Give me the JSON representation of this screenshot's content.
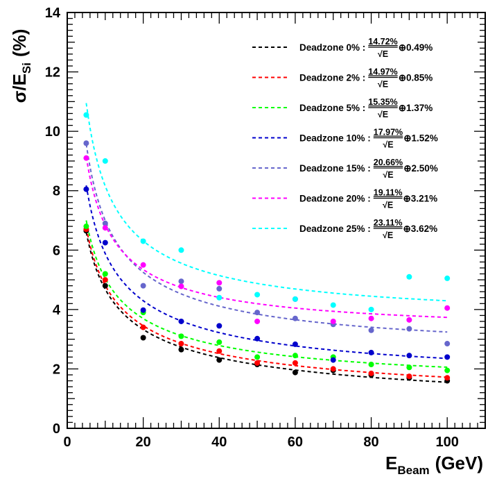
{
  "chart_data": {
    "type": "scatter",
    "title": "",
    "xlabel": {
      "main": "E",
      "sub": "Beam",
      "unit": "(GeV)"
    },
    "ylabel": {
      "main": "σ/E",
      "sub": "Si",
      "unit": "(%)"
    },
    "xlim": [
      0,
      110
    ],
    "ylim": [
      0,
      14
    ],
    "xticks": [
      0,
      20,
      40,
      60,
      80,
      100
    ],
    "yticks": [
      0,
      2,
      4,
      6,
      8,
      10,
      12,
      14
    ],
    "grid": false,
    "legend_position": "top-right",
    "fit_line_style": "dashed",
    "x": [
      5,
      10,
      20,
      30,
      40,
      50,
      60,
      70,
      80,
      90,
      100
    ],
    "series": [
      {
        "name": "Deadzone 0%",
        "color": "#000000",
        "fit_a": "14.72%",
        "fit_c": "0.49%",
        "a": 14.72,
        "c": 0.49,
        "values": [
          6.65,
          4.8,
          3.05,
          2.65,
          2.3,
          2.15,
          1.88,
          1.95,
          1.8,
          1.7,
          1.6
        ]
      },
      {
        "name": "Deadzone 2%",
        "color": "#ff0000",
        "fit_a": "14.97%",
        "fit_c": "0.85%",
        "a": 14.97,
        "c": 0.85,
        "values": [
          6.7,
          5.0,
          3.4,
          2.85,
          2.6,
          2.2,
          2.2,
          2.0,
          1.85,
          1.75,
          1.7
        ]
      },
      {
        "name": "Deadzone 5%",
        "color": "#00ff00",
        "fit_a": "15.35%",
        "fit_c": "1.37%",
        "a": 15.35,
        "c": 1.37,
        "values": [
          6.8,
          5.2,
          3.9,
          3.1,
          2.9,
          2.4,
          2.45,
          2.4,
          2.15,
          2.05,
          1.95
        ]
      },
      {
        "name": "Deadzone 10%",
        "color": "#0000cc",
        "fit_a": "17.97%",
        "fit_c": "1.52%",
        "a": 17.97,
        "c": 1.52,
        "values": [
          8.05,
          6.25,
          3.98,
          3.6,
          3.45,
          3.02,
          2.83,
          2.3,
          2.55,
          2.45,
          2.4
        ]
      },
      {
        "name": "Deadzone 15%",
        "color": "#6666cc",
        "fit_a": "20.66%",
        "fit_c": "2.50%",
        "a": 20.66,
        "c": 2.5,
        "values": [
          9.6,
          6.9,
          4.8,
          4.95,
          4.7,
          3.9,
          3.7,
          3.5,
          3.3,
          3.35,
          2.85
        ]
      },
      {
        "name": "Deadzone 20%",
        "color": "#ff00ff",
        "fit_a": "19.11%",
        "fit_c": "3.21%",
        "a": 19.11,
        "c": 3.21,
        "values": [
          9.1,
          6.75,
          5.5,
          4.78,
          4.9,
          3.6,
          4.35,
          3.6,
          3.7,
          3.65,
          4.05
        ]
      },
      {
        "name": "Deadzone 25%",
        "color": "#00ffff",
        "fit_a": "23.11%",
        "fit_c": "3.62%",
        "a": 23.11,
        "c": 3.62,
        "values": [
          10.55,
          9.0,
          6.3,
          6.0,
          4.4,
          4.5,
          4.35,
          4.15,
          4.0,
          5.1,
          5.05
        ]
      }
    ],
    "legend": {
      "separator": " : ",
      "sqrt_text": "√E",
      "oplus": "⊕"
    }
  }
}
